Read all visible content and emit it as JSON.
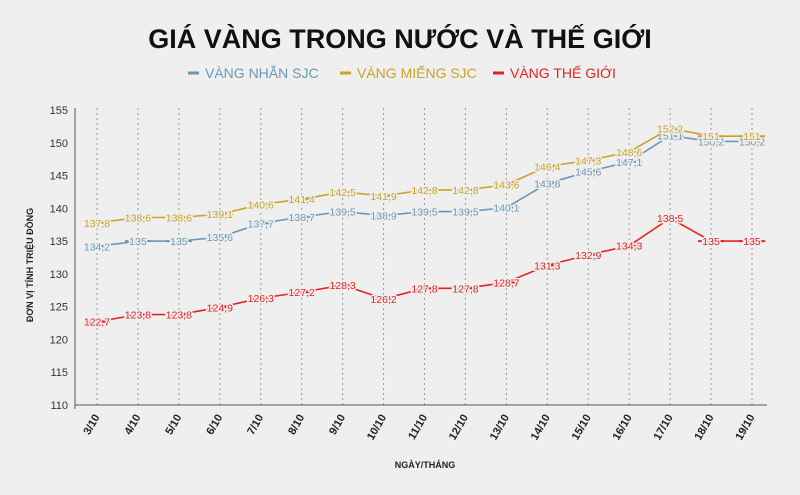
{
  "chart_data": {
    "type": "line",
    "title": "GIÁ VÀNG TRONG NƯỚC VÀ THẾ GIỚI",
    "xlabel": "NGÀY/THÁNG",
    "ylabel": "ĐƠN VỊ TÍNH TRIỆU ĐỒNG",
    "ylim": [
      110,
      155
    ],
    "yticks": [
      "110",
      "115",
      "120",
      "125",
      "130",
      "135",
      "140",
      "145",
      "150",
      "155"
    ],
    "categories": [
      "3/10",
      "4/10",
      "5/10",
      "6/10",
      "7/10",
      "8/10",
      "9/10",
      "10/10",
      "11/10",
      "12/10",
      "13/10",
      "14/10",
      "15/10",
      "16/10",
      "17/10",
      "18/10",
      "19/10"
    ],
    "grid": "vertical",
    "legend_position": "top",
    "series": [
      {
        "name": "VÀNG NHẪN SJC",
        "color": "#6b97b5",
        "values": [
          134.2,
          135,
          135,
          135.6,
          137.7,
          138.7,
          139.5,
          138.9,
          139.5,
          139.5,
          140.1,
          143.8,
          145.6,
          147.1,
          151.1,
          150.2,
          150.2
        ],
        "labels": [
          "134,2",
          "135",
          "135",
          "135,6",
          "137,7",
          "138,7",
          "139,5",
          "138,9",
          "139,5",
          "139,5",
          "140,1",
          "143,8",
          "145,6",
          "147,1",
          "151,1",
          "150,2",
          "150,2"
        ]
      },
      {
        "name": "VÀNG MIẾNG SJC",
        "color": "#c9a227",
        "values": [
          137.8,
          138.6,
          138.6,
          139.1,
          140.6,
          141.4,
          142.5,
          141.9,
          142.8,
          142.8,
          143.6,
          146.4,
          147.3,
          148.6,
          152.2,
          151,
          151
        ],
        "labels": [
          "137,8",
          "138,6",
          "138,6",
          "139,1",
          "140,6",
          "141,4",
          "142,5",
          "141,9",
          "142,8",
          "142,8",
          "143,6",
          "146,4",
          "147,3",
          "148,6",
          "152,2",
          "151",
          "151"
        ]
      },
      {
        "name": "VÀNG THẾ GIỚI",
        "color": "#e8231f",
        "values": [
          122.7,
          123.8,
          123.8,
          124.9,
          126.3,
          127.2,
          128.3,
          126.2,
          127.8,
          127.8,
          128.7,
          131.3,
          132.9,
          134.3,
          138.5,
          135,
          135
        ],
        "labels": [
          "122,7",
          "123,8",
          "123,8",
          "124,9",
          "126,3",
          "127,2",
          "128,3",
          "126,2",
          "127,8",
          "127,8",
          "128,7",
          "131,3",
          "132,9",
          "134,3",
          "138,5",
          "135",
          "135"
        ]
      }
    ]
  }
}
